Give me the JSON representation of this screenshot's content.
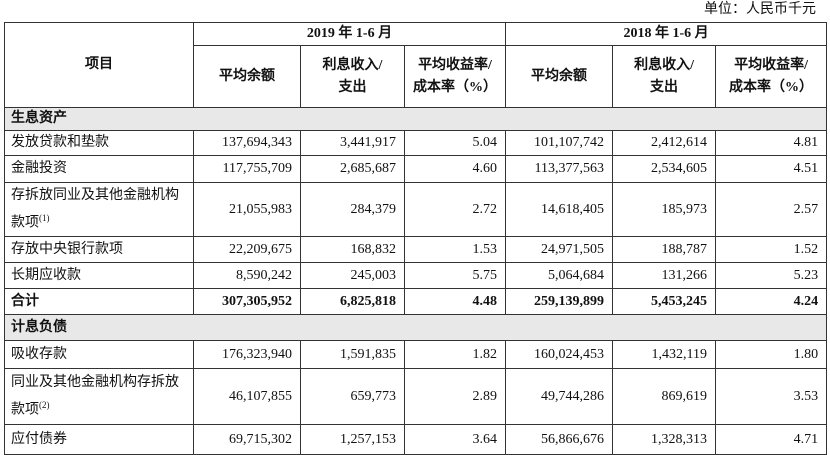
{
  "unit": "单位：人民币千元",
  "header": {
    "item": "项目",
    "periods": [
      "2019 年 1-6 月",
      "2018 年 1-6 月"
    ],
    "columns": [
      [
        "平均余额"
      ],
      [
        "利息收入/",
        "支出"
      ],
      [
        "平均收益率/",
        "成本率（%）"
      ]
    ]
  },
  "table": {
    "rows": [
      {
        "section": "生息资产"
      },
      {
        "label": "发放贷款和垫款",
        "values": [
          "137,694,343",
          "3,441,917",
          "5.04",
          "101,107,742",
          "2,412,614",
          "4.81"
        ]
      },
      {
        "label": "金融投资",
        "values": [
          "117,755,709",
          "2,685,687",
          "4.60",
          "113,377,563",
          "2,534,605",
          "4.51"
        ]
      },
      {
        "label": "存拆放同业及其他金融机构款项",
        "note": "(1)",
        "values": [
          "21,055,983",
          "284,379",
          "2.72",
          "14,618,405",
          "185,973",
          "2.57"
        ]
      },
      {
        "label": "存放中央银行款项",
        "values": [
          "22,209,675",
          "168,832",
          "1.53",
          "24,971,505",
          "188,787",
          "1.52"
        ]
      },
      {
        "label": "长期应收款",
        "values": [
          "8,590,242",
          "245,003",
          "5.75",
          "5,064,684",
          "131,266",
          "5.23"
        ]
      },
      {
        "total": "合计",
        "values": [
          "307,305,952",
          "6,825,818",
          "4.48",
          "259,139,899",
          "5,453,245",
          "4.24"
        ]
      },
      {
        "section": "计息负债"
      },
      {
        "label": "吸收存款",
        "values": [
          "176,323,940",
          "1,591,835",
          "1.82",
          "160,024,453",
          "1,432,119",
          "1.80"
        ]
      },
      {
        "label": "同业及其他金融机构存拆放款项",
        "note": "(2)",
        "values": [
          "46,107,855",
          "659,773",
          "2.89",
          "49,744,286",
          "869,619",
          "3.53"
        ]
      },
      {
        "label": "应付债券",
        "values": [
          "69,715,302",
          "1,257,153",
          "3.64",
          "56,866,676",
          "1,328,313",
          "4.71"
        ]
      }
    ]
  }
}
